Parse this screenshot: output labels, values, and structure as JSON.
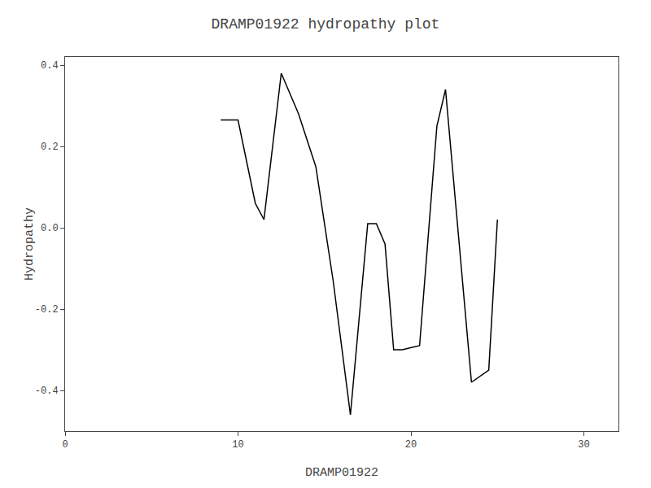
{
  "chart_data": {
    "type": "line",
    "title": "DRAMP01922 hydropathy plot",
    "xlabel": "DRAMP01922",
    "ylabel": "Hydropathy",
    "x": [
      9.0,
      10.0,
      11.0,
      11.5,
      12.5,
      13.5,
      14.5,
      15.5,
      16.5,
      17.5,
      18.0,
      18.5,
      19.0,
      19.5,
      20.5,
      21.5,
      22.0,
      22.5,
      23.5,
      24.5,
      25.0
    ],
    "values": [
      0.265,
      0.265,
      0.06,
      0.02,
      0.38,
      0.28,
      0.15,
      -0.13,
      -0.46,
      0.01,
      0.01,
      -0.04,
      -0.3,
      -0.3,
      -0.29,
      0.25,
      0.34,
      0.1,
      -0.38,
      -0.35,
      0.02
    ],
    "color": "#000000",
    "xlim": [
      0,
      32
    ],
    "ylim": [
      -0.5,
      0.42
    ],
    "xticks": [
      0,
      10,
      20,
      30
    ],
    "yticks": [
      -0.4,
      -0.2,
      {
        "value": 0.0,
        "label": "0.0"
      },
      0.2,
      0.4
    ],
    "grid": false
  }
}
